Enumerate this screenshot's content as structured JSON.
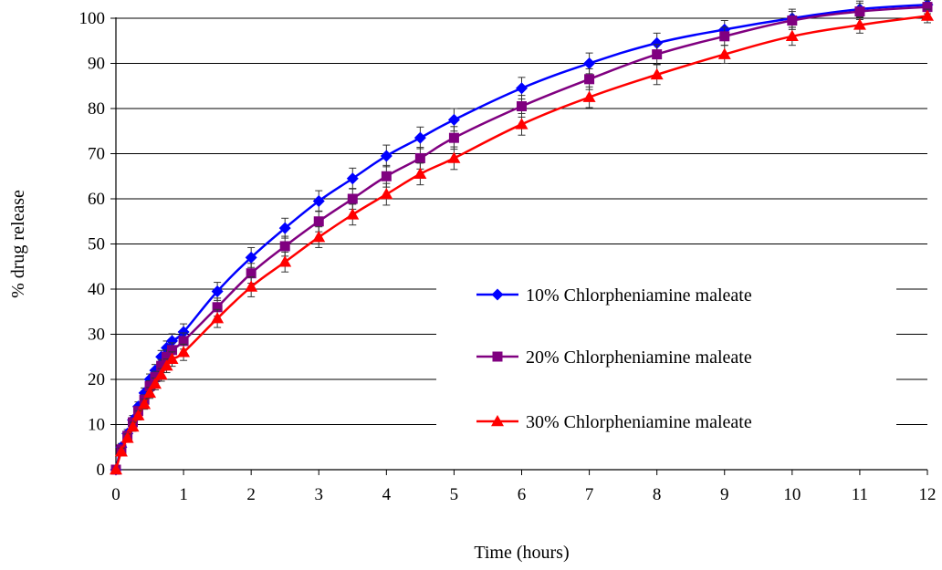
{
  "chart_data": {
    "type": "line",
    "xlabel": "Time (hours)",
    "ylabel": "% drug release",
    "xlim": [
      0,
      12
    ],
    "ylim": [
      0,
      100
    ],
    "xticks": [
      "0",
      "1",
      "2",
      "3",
      "4",
      "5",
      "6",
      "7",
      "8",
      "9",
      "10",
      "11",
      "12"
    ],
    "yticks": [
      "0",
      "10",
      "20",
      "30",
      "40",
      "50",
      "60",
      "70",
      "80",
      "90",
      "100"
    ],
    "grid": "horizontal",
    "legend_position": "right",
    "error_bars": true,
    "series": [
      {
        "name": "10% Chlorpheniamine maleate",
        "color": "#0000ff",
        "marker": "diamond",
        "x": [
          0,
          0.08,
          0.17,
          0.25,
          0.33,
          0.42,
          0.5,
          0.58,
          0.67,
          0.75,
          0.83,
          1,
          1.5,
          2,
          2.5,
          3,
          3.5,
          4,
          4.5,
          5,
          6,
          7,
          8,
          9,
          10,
          11,
          12
        ],
        "y": [
          0,
          5,
          8,
          11,
          14,
          17,
          20,
          22,
          25,
          27,
          28.5,
          30.5,
          39.5,
          47,
          53.5,
          59.5,
          64.5,
          69.5,
          73.5,
          77.5,
          84.5,
          90,
          94.5,
          97.5,
          100,
          102,
          103
        ],
        "errors": [
          0,
          0.8,
          0.9,
          1,
          1,
          1.1,
          1.2,
          1.3,
          1.4,
          1.5,
          1.6,
          1.8,
          2,
          2.2,
          2.2,
          2.3,
          2.3,
          2.4,
          2.4,
          2.5,
          2.4,
          2.3,
          2.2,
          2,
          2,
          1.8,
          1.5
        ]
      },
      {
        "name": "20% Chlorpheniamine maleate",
        "color": "#800080",
        "marker": "square",
        "x": [
          0,
          0.08,
          0.17,
          0.25,
          0.33,
          0.42,
          0.5,
          0.58,
          0.67,
          0.75,
          0.83,
          1,
          1.5,
          2,
          2.5,
          3,
          3.5,
          4,
          4.5,
          5,
          6,
          7,
          8,
          9,
          10,
          11,
          12
        ],
        "y": [
          0,
          4.5,
          7.5,
          10.5,
          13,
          15.5,
          18.5,
          20.5,
          23,
          25,
          26.5,
          28.5,
          36,
          43.5,
          49.5,
          55,
          60,
          65,
          69,
          73.5,
          80.5,
          86.5,
          92,
          96,
          99.5,
          101.5,
          102.5
        ],
        "errors": [
          0,
          0.8,
          0.9,
          1,
          1,
          1.1,
          1.2,
          1.3,
          1.4,
          1.5,
          1.6,
          1.8,
          2,
          2.2,
          2.2,
          2.3,
          2.3,
          2.4,
          2.4,
          2.5,
          2.4,
          2.3,
          2.2,
          2,
          2,
          1.8,
          1.5
        ]
      },
      {
        "name": "30% Chlorpheniamine maleate",
        "color": "#ff0000",
        "marker": "triangle",
        "x": [
          0,
          0.08,
          0.17,
          0.25,
          0.33,
          0.42,
          0.5,
          0.58,
          0.67,
          0.75,
          0.83,
          1,
          1.5,
          2,
          2.5,
          3,
          3.5,
          4,
          4.5,
          5,
          6,
          7,
          8,
          9,
          10,
          11,
          12
        ],
        "y": [
          0,
          4,
          7,
          9.5,
          12,
          14.5,
          17,
          19,
          21,
          23,
          24.5,
          26,
          33.5,
          40.5,
          46,
          51.5,
          56.5,
          61,
          65.5,
          69,
          76.5,
          82.5,
          87.5,
          92,
          96,
          98.5,
          100.5
        ],
        "errors": [
          0,
          0.8,
          0.9,
          1,
          1,
          1.1,
          1.2,
          1.3,
          1.4,
          1.5,
          1.6,
          1.8,
          2,
          2.2,
          2.2,
          2.3,
          2.3,
          2.4,
          2.4,
          2.5,
          2.4,
          2.3,
          2.2,
          2,
          2,
          1.8,
          1.5
        ]
      }
    ]
  }
}
